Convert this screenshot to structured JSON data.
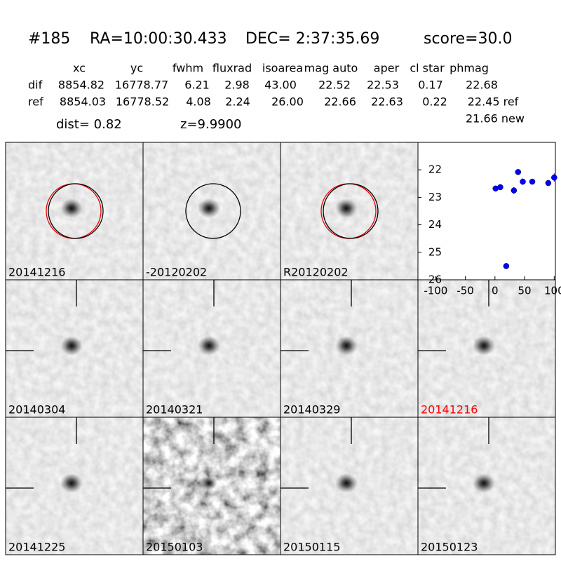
{
  "header": {
    "id": "#185",
    "ra": "RA=10:00:30.433",
    "dec": "DEC= 2:37:35.69",
    "score": "score=30.0"
  },
  "table": {
    "columns": [
      "xc",
      "yc",
      "fwhm",
      "fluxrad",
      "isoarea",
      "mag auto",
      "aper",
      "cl star",
      "phmag"
    ],
    "rows": [
      [
        "dif",
        "8854.82",
        "16778.77",
        "6.21",
        "2.98",
        "43.00",
        "22.52",
        "22.53",
        "0.17",
        "22.68"
      ],
      [
        "ref",
        "8854.03",
        "16778.52",
        "4.08",
        "2.24",
        "26.00",
        "22.66",
        "22.63",
        "0.22",
        "22.45 ref"
      ]
    ],
    "new_mag": "21.66 new",
    "dist": "dist=  0.82",
    "z": "z=9.9900"
  },
  "panels": [
    "20141216",
    "-20120202",
    "R20120202",
    "20140304",
    "20140321",
    "20140329",
    "20141216",
    "20141225",
    "20150103",
    "20150115",
    "20150123"
  ],
  "chart_data": {
    "type": "scatter",
    "color": "#0000ff",
    "x": [
      1,
      9,
      19,
      32,
      39,
      47,
      63,
      90,
      100
    ],
    "values": [
      22.68,
      22.63,
      25.5,
      22.75,
      22.08,
      22.43,
      22.43,
      22.48,
      22.28
    ],
    "errors": [
      0.1,
      0.1,
      0.08,
      0.12,
      0.06,
      0.12,
      0.06,
      0.08,
      0.15
    ],
    "xlim": [
      -130,
      102
    ],
    "ylim": [
      26,
      21
    ],
    "xticks": [
      -100,
      -50,
      0,
      50,
      100
    ],
    "yticks": [
      22,
      23,
      24,
      25,
      26
    ]
  }
}
